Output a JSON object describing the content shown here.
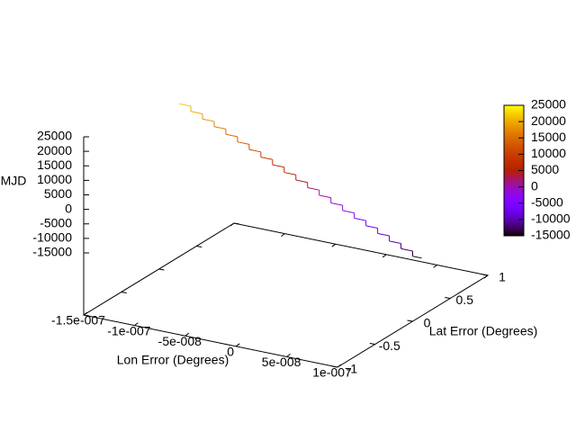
{
  "chart_data": {
    "type": "line3d",
    "drawstyle": "steps",
    "x": [
      -1.3e-07,
      -1.185e-07,
      -1.07e-07,
      -9.55e-08,
      -8.4e-08,
      -7.25e-08,
      -6.1e-08,
      -4.95e-08,
      -3.8e-08,
      -2.65e-08,
      -1.5e-08,
      -3.5e-09,
      8e-09,
      1.95e-08,
      3.1e-08,
      4.25e-08,
      5.4e-08,
      6.55e-08,
      7.7e-08,
      8.85e-08,
      1e-07
    ],
    "y": [
      0,
      0,
      0,
      0,
      0,
      0,
      0,
      0,
      0,
      0,
      0,
      0,
      0,
      0,
      0,
      0,
      0,
      0,
      0,
      0,
      0
    ],
    "z": [
      22000,
      20200,
      18400,
      16600,
      14800,
      13000,
      11200,
      9400,
      7600,
      5800,
      4000,
      2200,
      400,
      -1400,
      -3200,
      -5000,
      -6800,
      -8600,
      -10400,
      -12200,
      -14000
    ],
    "xlabel": "Lon Error (Degrees)",
    "ylabel": "Lat Error (Degrees)",
    "zlabel": "MJD",
    "xlim": [
      -1.5e-07,
      1e-07
    ],
    "xticks": [
      {
        "value": -1.5e-07,
        "label": "-1.5e-007"
      },
      {
        "value": -1e-07,
        "label": "-1e-007"
      },
      {
        "value": -5e-08,
        "label": "-5e-008"
      },
      0,
      {
        "value": 5e-08,
        "label": "5e-008"
      },
      {
        "value": 1e-07,
        "label": "1e-007"
      }
    ],
    "ylim": [
      -1,
      1
    ],
    "yticks": [
      -1,
      -0.5,
      0,
      0.5,
      1
    ],
    "zlim": [
      -15000,
      25000
    ],
    "zticks": [
      -15000,
      -10000,
      -5000,
      0,
      5000,
      10000,
      15000,
      20000,
      25000
    ],
    "cblim": [
      -15000,
      25000
    ],
    "cbticks": [
      -15000,
      -10000,
      -5000,
      0,
      5000,
      10000,
      15000,
      20000,
      25000
    ]
  }
}
